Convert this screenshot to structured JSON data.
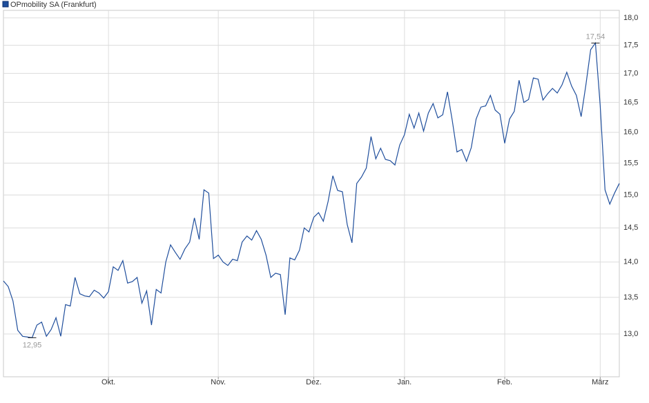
{
  "chart_data": {
    "type": "line",
    "series": [
      {
        "name": "OPmobility SA (Frankfurt)",
        "color": "#1f4e9c",
        "values": [
          13.73,
          13.65,
          13.45,
          13.05,
          12.97,
          12.96,
          12.95,
          13.12,
          13.16,
          12.97,
          13.06,
          13.22,
          12.97,
          13.4,
          13.38,
          13.78,
          13.55,
          13.52,
          13.51,
          13.6,
          13.56,
          13.49,
          13.58,
          13.93,
          13.88,
          14.02,
          13.7,
          13.72,
          13.78,
          13.42,
          13.59,
          13.12,
          13.61,
          13.56,
          14.0,
          14.25,
          14.14,
          14.04,
          14.19,
          14.29,
          14.65,
          14.33,
          15.08,
          15.03,
          14.05,
          14.1,
          14.0,
          13.95,
          14.04,
          14.02,
          14.29,
          14.38,
          14.32,
          14.46,
          14.33,
          14.1,
          13.78,
          13.84,
          13.82,
          13.26,
          14.06,
          14.03,
          14.17,
          14.5,
          14.44,
          14.66,
          14.73,
          14.6,
          14.9,
          15.3,
          15.07,
          15.05,
          14.55,
          14.28,
          15.18,
          15.28,
          15.42,
          15.93,
          15.57,
          15.74,
          15.56,
          15.54,
          15.47,
          15.79,
          15.96,
          16.3,
          16.07,
          16.32,
          16.02,
          16.32,
          16.48,
          16.24,
          16.29,
          16.68,
          16.2,
          15.68,
          15.72,
          15.53,
          15.75,
          16.22,
          16.42,
          16.44,
          16.62,
          16.37,
          16.3,
          15.82,
          16.22,
          16.35,
          16.88,
          16.5,
          16.55,
          16.92,
          16.9,
          16.54,
          16.65,
          16.74,
          16.66,
          16.8,
          17.02,
          16.78,
          16.62,
          16.26,
          16.8,
          17.42,
          17.54,
          16.45,
          15.08,
          14.86,
          15.03,
          15.18
        ]
      }
    ],
    "x": [
      0,
      1,
      2,
      3,
      4,
      5,
      6,
      7,
      8,
      9,
      10,
      11,
      12,
      13,
      14,
      15,
      16,
      17,
      18,
      19,
      20,
      21,
      22,
      23,
      24,
      25,
      26,
      27,
      28,
      29,
      30,
      31,
      32,
      33,
      34,
      35,
      36,
      37,
      38,
      39,
      40,
      41,
      42,
      43,
      44,
      45,
      46,
      47,
      48,
      49,
      50,
      51,
      52,
      53,
      54,
      55,
      56,
      57,
      58,
      59,
      60,
      61,
      62,
      63,
      64,
      65,
      66,
      67,
      68,
      69,
      70,
      71,
      72,
      73,
      74,
      75,
      76,
      77,
      78,
      79,
      80,
      81,
      82,
      83,
      84,
      85,
      86,
      87,
      88,
      89,
      90,
      91,
      92,
      93,
      94,
      95,
      96,
      97,
      98,
      99,
      100,
      101,
      102,
      103,
      104,
      105,
      106,
      107,
      108,
      109,
      110,
      111,
      112,
      113,
      114,
      115,
      116,
      117,
      118,
      119,
      120,
      121,
      122,
      123,
      124,
      125,
      126,
      127,
      128,
      129
    ],
    "xlim": [
      0,
      129
    ],
    "xticks": [
      {
        "value": 22,
        "label": "Okt."
      },
      {
        "value": 45,
        "label": "Nov."
      },
      {
        "value": 65,
        "label": "Dez."
      },
      {
        "value": 84,
        "label": "Jan."
      },
      {
        "value": 105,
        "label": "Feb."
      },
      {
        "value": 125,
        "label": "März"
      }
    ],
    "ylim": [
      12.44,
      18.14
    ],
    "log": true,
    "yticks": [
      {
        "value": 13,
        "label": "13,0"
      },
      {
        "value": 13.5,
        "label": "13,5"
      },
      {
        "value": 14,
        "label": "14,0"
      },
      {
        "value": 14.5,
        "label": "14,5"
      },
      {
        "value": 15,
        "label": "15,0"
      },
      {
        "value": 15.5,
        "label": "15,5"
      },
      {
        "value": 16,
        "label": "16,0"
      },
      {
        "value": 16.5,
        "label": "16,5"
      },
      {
        "value": 17,
        "label": "17,0"
      },
      {
        "value": 17.5,
        "label": "17,5"
      },
      {
        "value": 18,
        "label": "18,0"
      }
    ],
    "grid": true,
    "annotations": [
      {
        "label": "12,95",
        "x": 6,
        "y": 12.95
      },
      {
        "label": "17,54",
        "x": 124,
        "y": 17.54
      }
    ]
  }
}
